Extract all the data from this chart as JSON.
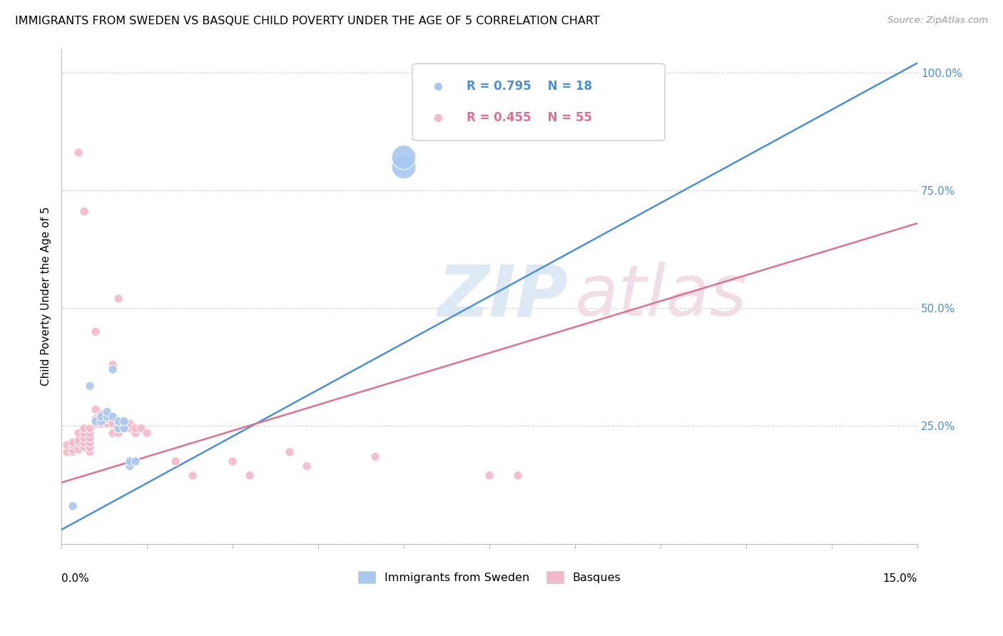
{
  "title": "IMMIGRANTS FROM SWEDEN VS BASQUE CHILD POVERTY UNDER THE AGE OF 5 CORRELATION CHART",
  "source": "Source: ZipAtlas.com",
  "ylabel": "Child Poverty Under the Age of 5",
  "yticks": [
    0.0,
    0.25,
    0.5,
    0.75,
    1.0
  ],
  "ytick_labels": [
    "",
    "25.0%",
    "50.0%",
    "75.0%",
    "100.0%"
  ],
  "legend_blue_r": "R = 0.795",
  "legend_blue_n": "N = 18",
  "legend_pink_r": "R = 0.455",
  "legend_pink_n": "N = 55",
  "legend_label_blue": "Immigrants from Sweden",
  "legend_label_pink": "Basques",
  "watermark_zip": "ZIP",
  "watermark_atlas": "atlas",
  "blue_color": "#a8c8f0",
  "pink_color": "#f5b8c8",
  "blue_line_color": "#4a90d9",
  "pink_line_color": "#e07090",
  "blue_line_x0": 0.0,
  "blue_line_y0": 0.03,
  "blue_line_x1": 0.15,
  "blue_line_y1": 1.02,
  "pink_line_x0": 0.0,
  "pink_line_y0": 0.13,
  "pink_line_x1": 0.15,
  "pink_line_y1": 0.68,
  "blue_dots": [
    [
      0.005,
      0.335
    ],
    [
      0.006,
      0.26
    ],
    [
      0.007,
      0.26
    ],
    [
      0.007,
      0.27
    ],
    [
      0.008,
      0.27
    ],
    [
      0.008,
      0.28
    ],
    [
      0.009,
      0.27
    ],
    [
      0.009,
      0.37
    ],
    [
      0.01,
      0.245
    ],
    [
      0.01,
      0.26
    ],
    [
      0.011,
      0.245
    ],
    [
      0.011,
      0.26
    ],
    [
      0.012,
      0.165
    ],
    [
      0.012,
      0.175
    ],
    [
      0.013,
      0.175
    ],
    [
      0.06,
      0.8
    ],
    [
      0.06,
      0.82
    ],
    [
      0.002,
      0.08
    ]
  ],
  "blue_dot_sizes": [
    80,
    80,
    80,
    80,
    80,
    80,
    80,
    80,
    80,
    80,
    80,
    80,
    80,
    80,
    80,
    600,
    600,
    80
  ],
  "pink_dots": [
    [
      0.001,
      0.195
    ],
    [
      0.001,
      0.21
    ],
    [
      0.002,
      0.195
    ],
    [
      0.002,
      0.2
    ],
    [
      0.002,
      0.21
    ],
    [
      0.002,
      0.215
    ],
    [
      0.003,
      0.2
    ],
    [
      0.003,
      0.215
    ],
    [
      0.003,
      0.22
    ],
    [
      0.003,
      0.235
    ],
    [
      0.003,
      0.83
    ],
    [
      0.004,
      0.205
    ],
    [
      0.004,
      0.215
    ],
    [
      0.004,
      0.225
    ],
    [
      0.004,
      0.235
    ],
    [
      0.004,
      0.245
    ],
    [
      0.004,
      0.705
    ],
    [
      0.005,
      0.195
    ],
    [
      0.005,
      0.205
    ],
    [
      0.005,
      0.215
    ],
    [
      0.005,
      0.225
    ],
    [
      0.005,
      0.235
    ],
    [
      0.005,
      0.245
    ],
    [
      0.006,
      0.255
    ],
    [
      0.006,
      0.265
    ],
    [
      0.006,
      0.285
    ],
    [
      0.006,
      0.45
    ],
    [
      0.007,
      0.255
    ],
    [
      0.007,
      0.265
    ],
    [
      0.007,
      0.275
    ],
    [
      0.008,
      0.255
    ],
    [
      0.008,
      0.265
    ],
    [
      0.009,
      0.235
    ],
    [
      0.009,
      0.255
    ],
    [
      0.009,
      0.38
    ],
    [
      0.01,
      0.235
    ],
    [
      0.01,
      0.245
    ],
    [
      0.01,
      0.52
    ],
    [
      0.011,
      0.245
    ],
    [
      0.011,
      0.26
    ],
    [
      0.012,
      0.245
    ],
    [
      0.012,
      0.255
    ],
    [
      0.013,
      0.235
    ],
    [
      0.013,
      0.245
    ],
    [
      0.014,
      0.245
    ],
    [
      0.015,
      0.235
    ],
    [
      0.02,
      0.175
    ],
    [
      0.023,
      0.145
    ],
    [
      0.03,
      0.175
    ],
    [
      0.033,
      0.145
    ],
    [
      0.04,
      0.195
    ],
    [
      0.043,
      0.165
    ],
    [
      0.055,
      0.185
    ],
    [
      0.075,
      0.145
    ],
    [
      0.08,
      0.145
    ]
  ],
  "pink_dot_sizes": [
    80,
    80,
    80,
    80,
    80,
    80,
    80,
    80,
    80,
    80,
    80,
    80,
    80,
    80,
    80,
    80,
    80,
    80,
    80,
    80,
    80,
    80,
    80,
    80,
    80,
    80,
    80,
    80,
    80,
    80,
    80,
    80,
    80,
    80,
    80,
    80,
    80,
    80,
    80,
    80,
    80,
    80,
    80,
    80,
    80,
    80,
    80,
    80,
    80,
    80,
    80,
    80,
    80,
    80,
    80
  ],
  "xlim": [
    0.0,
    0.15
  ],
  "ylim": [
    0.0,
    1.05
  ],
  "figsize": [
    14.06,
    8.92
  ],
  "dpi": 100
}
